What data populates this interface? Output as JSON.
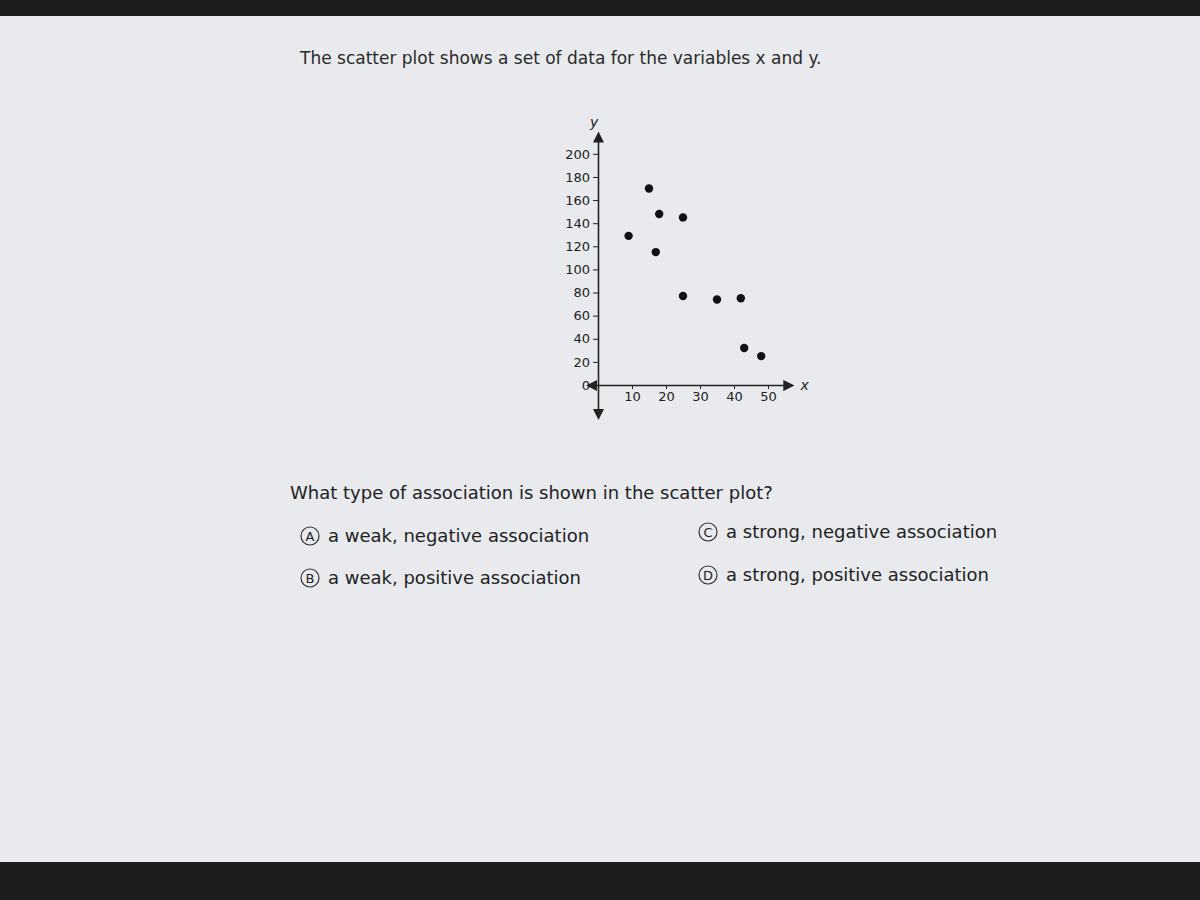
{
  "prompt": "The scatter plot shows a set of data for the variables x and y.",
  "chart_data": {
    "type": "scatter",
    "x_label": "x",
    "y_label": "y",
    "x": [
      15,
      18,
      25,
      9,
      17,
      25,
      35,
      42,
      43,
      48
    ],
    "values": [
      170,
      148,
      145,
      129,
      115,
      77,
      74,
      75,
      32,
      25
    ],
    "color": "#111111",
    "marker": "circle",
    "xlim": [
      -2,
      56
    ],
    "ylim": [
      -25,
      215
    ],
    "xticks": [
      10,
      20,
      30,
      40,
      50
    ],
    "yticks": [
      0,
      20,
      40,
      60,
      80,
      100,
      120,
      140,
      160,
      180,
      200
    ],
    "grid": false
  },
  "question": "What type of association is shown in the scatter plot?",
  "options": [
    {
      "letter": "A",
      "text": "a weak, negative association"
    },
    {
      "letter": "B",
      "text": "a weak, positive association"
    },
    {
      "letter": "C",
      "text": "a strong, negative association"
    },
    {
      "letter": "D",
      "text": "a strong, positive association"
    }
  ]
}
